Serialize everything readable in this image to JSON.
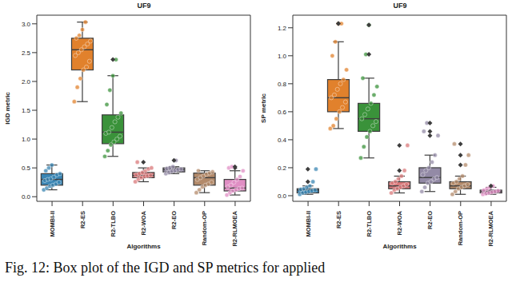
{
  "caption": "Fig. 12: Box plot of the IGD and SP metrics for applied",
  "chart_data": [
    {
      "type": "box",
      "title": "UF9",
      "x_label": "Algorithms",
      "y_label": "IGD metric",
      "categories": [
        "MOMBI-II",
        "R2-ES",
        "R2-TLBO",
        "R2-WOA",
        "R2-EO",
        "Random-OP",
        "R2-RLMOEA"
      ],
      "ylim": [
        -0.08,
        3.15
      ],
      "yticks": [
        {
          "value": 0,
          "label": "0.0"
        },
        {
          "value": 0.5,
          "label": "0.5"
        },
        {
          "value": 1,
          "label": "1.0"
        },
        {
          "value": 1.5,
          "label": "1.5"
        },
        {
          "value": 2,
          "label": "2.0"
        },
        {
          "value": 2.5,
          "label": "2.5"
        },
        {
          "value": 3,
          "label": "3.0"
        }
      ],
      "boxes": [
        {
          "color": "#3a85b3",
          "whisker_low": 0.12,
          "q1": 0.2,
          "median": 0.3,
          "q3": 0.4,
          "whisker_high": 0.55,
          "points": [
            0.12,
            0.15,
            0.18,
            0.2,
            0.22,
            0.25,
            0.28,
            0.3,
            0.31,
            0.34,
            0.38,
            0.4,
            0.45,
            0.5,
            0.55
          ]
        },
        {
          "color": "#e1812c",
          "whisker_low": 1.65,
          "q1": 2.2,
          "median": 2.55,
          "q3": 2.75,
          "whisker_high": 3.03,
          "points": [
            1.65,
            1.9,
            2.05,
            2.2,
            2.25,
            2.35,
            2.45,
            2.5,
            2.55,
            2.6,
            2.65,
            2.7,
            2.75,
            2.8,
            2.9,
            3.03
          ]
        },
        {
          "color": "#3a923a",
          "whisker_low": 0.7,
          "q1": 0.92,
          "median": 1.12,
          "q3": 1.42,
          "whisker_high": 2.1,
          "points": [
            0.7,
            0.8,
            0.9,
            0.95,
            1.0,
            1.05,
            1.1,
            1.12,
            1.2,
            1.3,
            1.38,
            1.45,
            1.6,
            1.85,
            2.1,
            2.38
          ]
        },
        {
          "color": "#d9787a",
          "whisker_low": 0.26,
          "q1": 0.33,
          "median": 0.37,
          "q3": 0.42,
          "whisker_high": 0.5,
          "points": [
            0.26,
            0.3,
            0.33,
            0.35,
            0.36,
            0.37,
            0.38,
            0.4,
            0.42,
            0.45,
            0.48,
            0.5,
            0.6
          ]
        },
        {
          "color": "#938aa6",
          "whisker_low": 0.4,
          "q1": 0.43,
          "median": 0.47,
          "q3": 0.5,
          "whisker_high": 0.52,
          "points": [
            0.4,
            0.42,
            0.44,
            0.45,
            0.47,
            0.48,
            0.49,
            0.5,
            0.52,
            0.63
          ]
        },
        {
          "color": "#b38a6a",
          "whisker_low": 0.07,
          "q1": 0.2,
          "median": 0.33,
          "q3": 0.41,
          "whisker_high": 0.45,
          "points": [
            0.07,
            0.12,
            0.17,
            0.2,
            0.22,
            0.25,
            0.3,
            0.33,
            0.36,
            0.39,
            0.41,
            0.43,
            0.45
          ]
        },
        {
          "color": "#e08ec4",
          "whisker_low": 0.03,
          "q1": 0.1,
          "median": 0.15,
          "q3": 0.3,
          "whisker_high": 0.45,
          "points": [
            0.03,
            0.07,
            0.1,
            0.12,
            0.14,
            0.15,
            0.17,
            0.2,
            0.25,
            0.3,
            0.35,
            0.45,
            0.5,
            0.52
          ]
        }
      ]
    },
    {
      "type": "box",
      "title": "UF9",
      "x_label": "Algorithms",
      "y_label": "SP metric",
      "categories": [
        "MOMBI-II",
        "R2-ES",
        "R2-TLBO",
        "R2-WOA",
        "R2-EO",
        "Random-OP",
        "R2-RLMOEA"
      ],
      "ylim": [
        -0.04,
        1.29
      ],
      "yticks": [
        {
          "value": 0,
          "label": "0.0"
        },
        {
          "value": 0.2,
          "label": "0.2"
        },
        {
          "value": 0.4,
          "label": "0.4"
        },
        {
          "value": 0.6,
          "label": "0.6"
        },
        {
          "value": 0.8,
          "label": "0.8"
        },
        {
          "value": 1,
          "label": "1.0"
        },
        {
          "value": 1.2,
          "label": "1.2"
        }
      ],
      "boxes": [
        {
          "color": "#3a85b3",
          "whisker_low": 0.01,
          "q1": 0.02,
          "median": 0.04,
          "q3": 0.05,
          "whisker_high": 0.07,
          "points": [
            0.01,
            0.02,
            0.025,
            0.03,
            0.035,
            0.04,
            0.045,
            0.05,
            0.06,
            0.07,
            0.1,
            0.19
          ]
        },
        {
          "color": "#e1812c",
          "whisker_low": 0.48,
          "q1": 0.6,
          "median": 0.7,
          "q3": 0.83,
          "whisker_high": 1.1,
          "points": [
            0.48,
            0.5,
            0.55,
            0.6,
            0.63,
            0.67,
            0.7,
            0.72,
            0.76,
            0.8,
            0.83,
            0.9,
            1.0,
            1.1,
            1.23,
            1.23
          ]
        },
        {
          "color": "#3a923a",
          "whisker_low": 0.27,
          "q1": 0.46,
          "median": 0.55,
          "q3": 0.66,
          "whisker_high": 0.84,
          "points": [
            0.27,
            0.35,
            0.42,
            0.46,
            0.5,
            0.53,
            0.55,
            0.58,
            0.62,
            0.66,
            0.72,
            0.78,
            0.84,
            1.01,
            1.22
          ]
        },
        {
          "color": "#d9787a",
          "whisker_low": 0.02,
          "q1": 0.05,
          "median": 0.07,
          "q3": 0.1,
          "whisker_high": 0.14,
          "points": [
            0.02,
            0.04,
            0.05,
            0.06,
            0.07,
            0.08,
            0.09,
            0.1,
            0.12,
            0.14,
            0.18,
            0.36
          ]
        },
        {
          "color": "#938aa6",
          "whisker_low": 0.03,
          "q1": 0.09,
          "median": 0.13,
          "q3": 0.2,
          "whisker_high": 0.29,
          "points": [
            0.03,
            0.06,
            0.09,
            0.1,
            0.12,
            0.13,
            0.15,
            0.18,
            0.2,
            0.24,
            0.29,
            0.43,
            0.46,
            0.52
          ]
        },
        {
          "color": "#b38a6a",
          "whisker_low": 0.01,
          "q1": 0.05,
          "median": 0.07,
          "q3": 0.1,
          "whisker_high": 0.14,
          "points": [
            0.01,
            0.03,
            0.05,
            0.06,
            0.07,
            0.08,
            0.09,
            0.1,
            0.12,
            0.14,
            0.22,
            0.29,
            0.37
          ]
        },
        {
          "color": "#e08ec4",
          "whisker_low": 0.01,
          "q1": 0.02,
          "median": 0.03,
          "q3": 0.04,
          "whisker_high": 0.06,
          "points": [
            0.01,
            0.015,
            0.02,
            0.025,
            0.03,
            0.035,
            0.04,
            0.05,
            0.06,
            0.07
          ]
        }
      ]
    }
  ]
}
